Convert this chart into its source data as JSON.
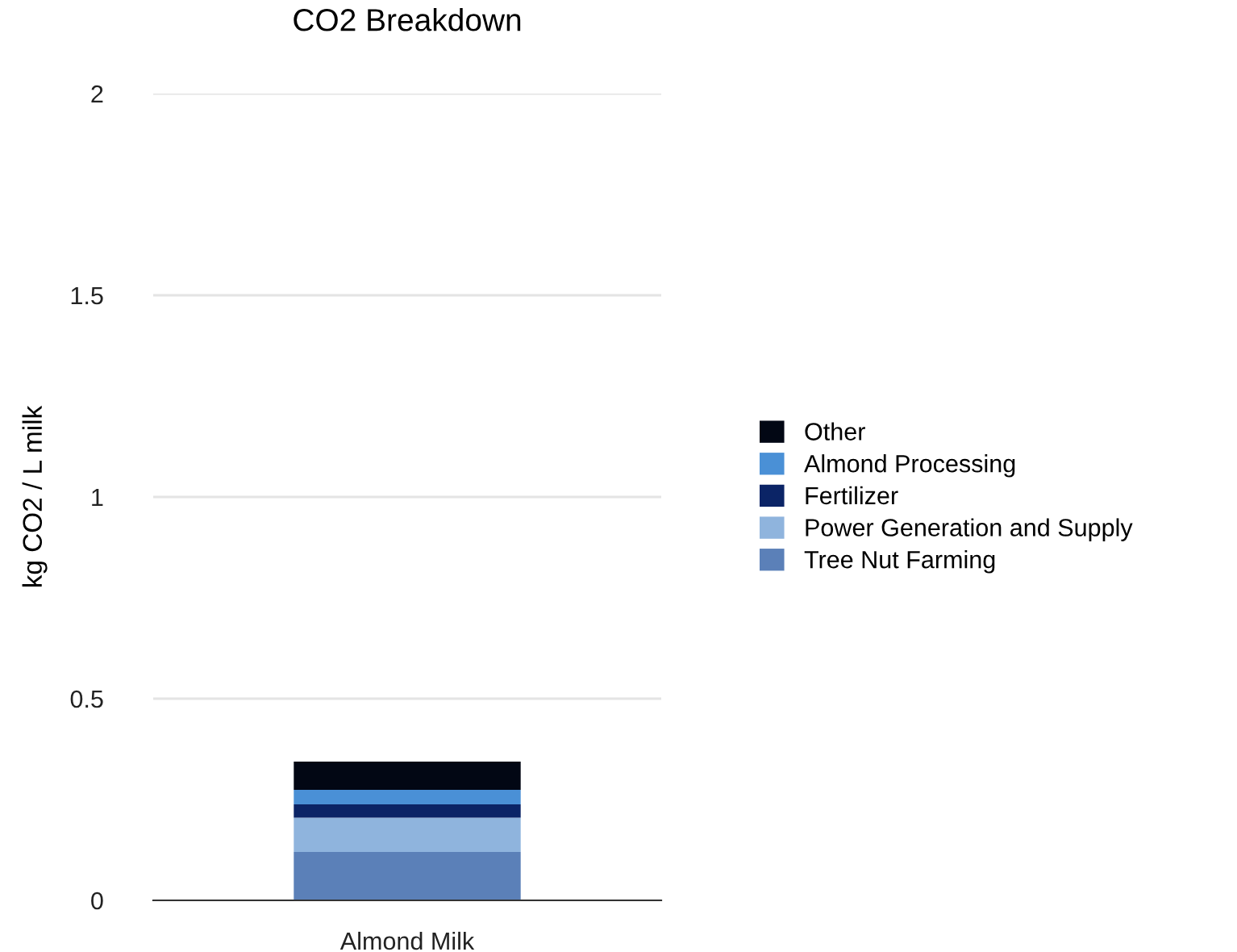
{
  "chart_data": {
    "type": "bar",
    "title": "CO2 Breakdown",
    "ylabel": "kg CO2 / L milk",
    "categories": [
      "Almond Milk"
    ],
    "stacked": true,
    "series": [
      {
        "name": "Tree Nut Farming",
        "color": "#5b80b8",
        "values": [
          0.12
        ]
      },
      {
        "name": "Power Generation and Supply",
        "color": "#8fb4dd",
        "values": [
          0.085
        ]
      },
      {
        "name": "Fertilizer",
        "color": "#0b2466",
        "values": [
          0.033
        ]
      },
      {
        "name": "Almond Processing",
        "color": "#4a90d6",
        "values": [
          0.036
        ]
      },
      {
        "name": "Other",
        "color": "#020714",
        "values": [
          0.07
        ]
      }
    ],
    "ylim": [
      0,
      2
    ],
    "yticks": [
      0,
      0.5,
      1,
      1.5,
      2
    ],
    "grid": "y",
    "legend": "right"
  }
}
